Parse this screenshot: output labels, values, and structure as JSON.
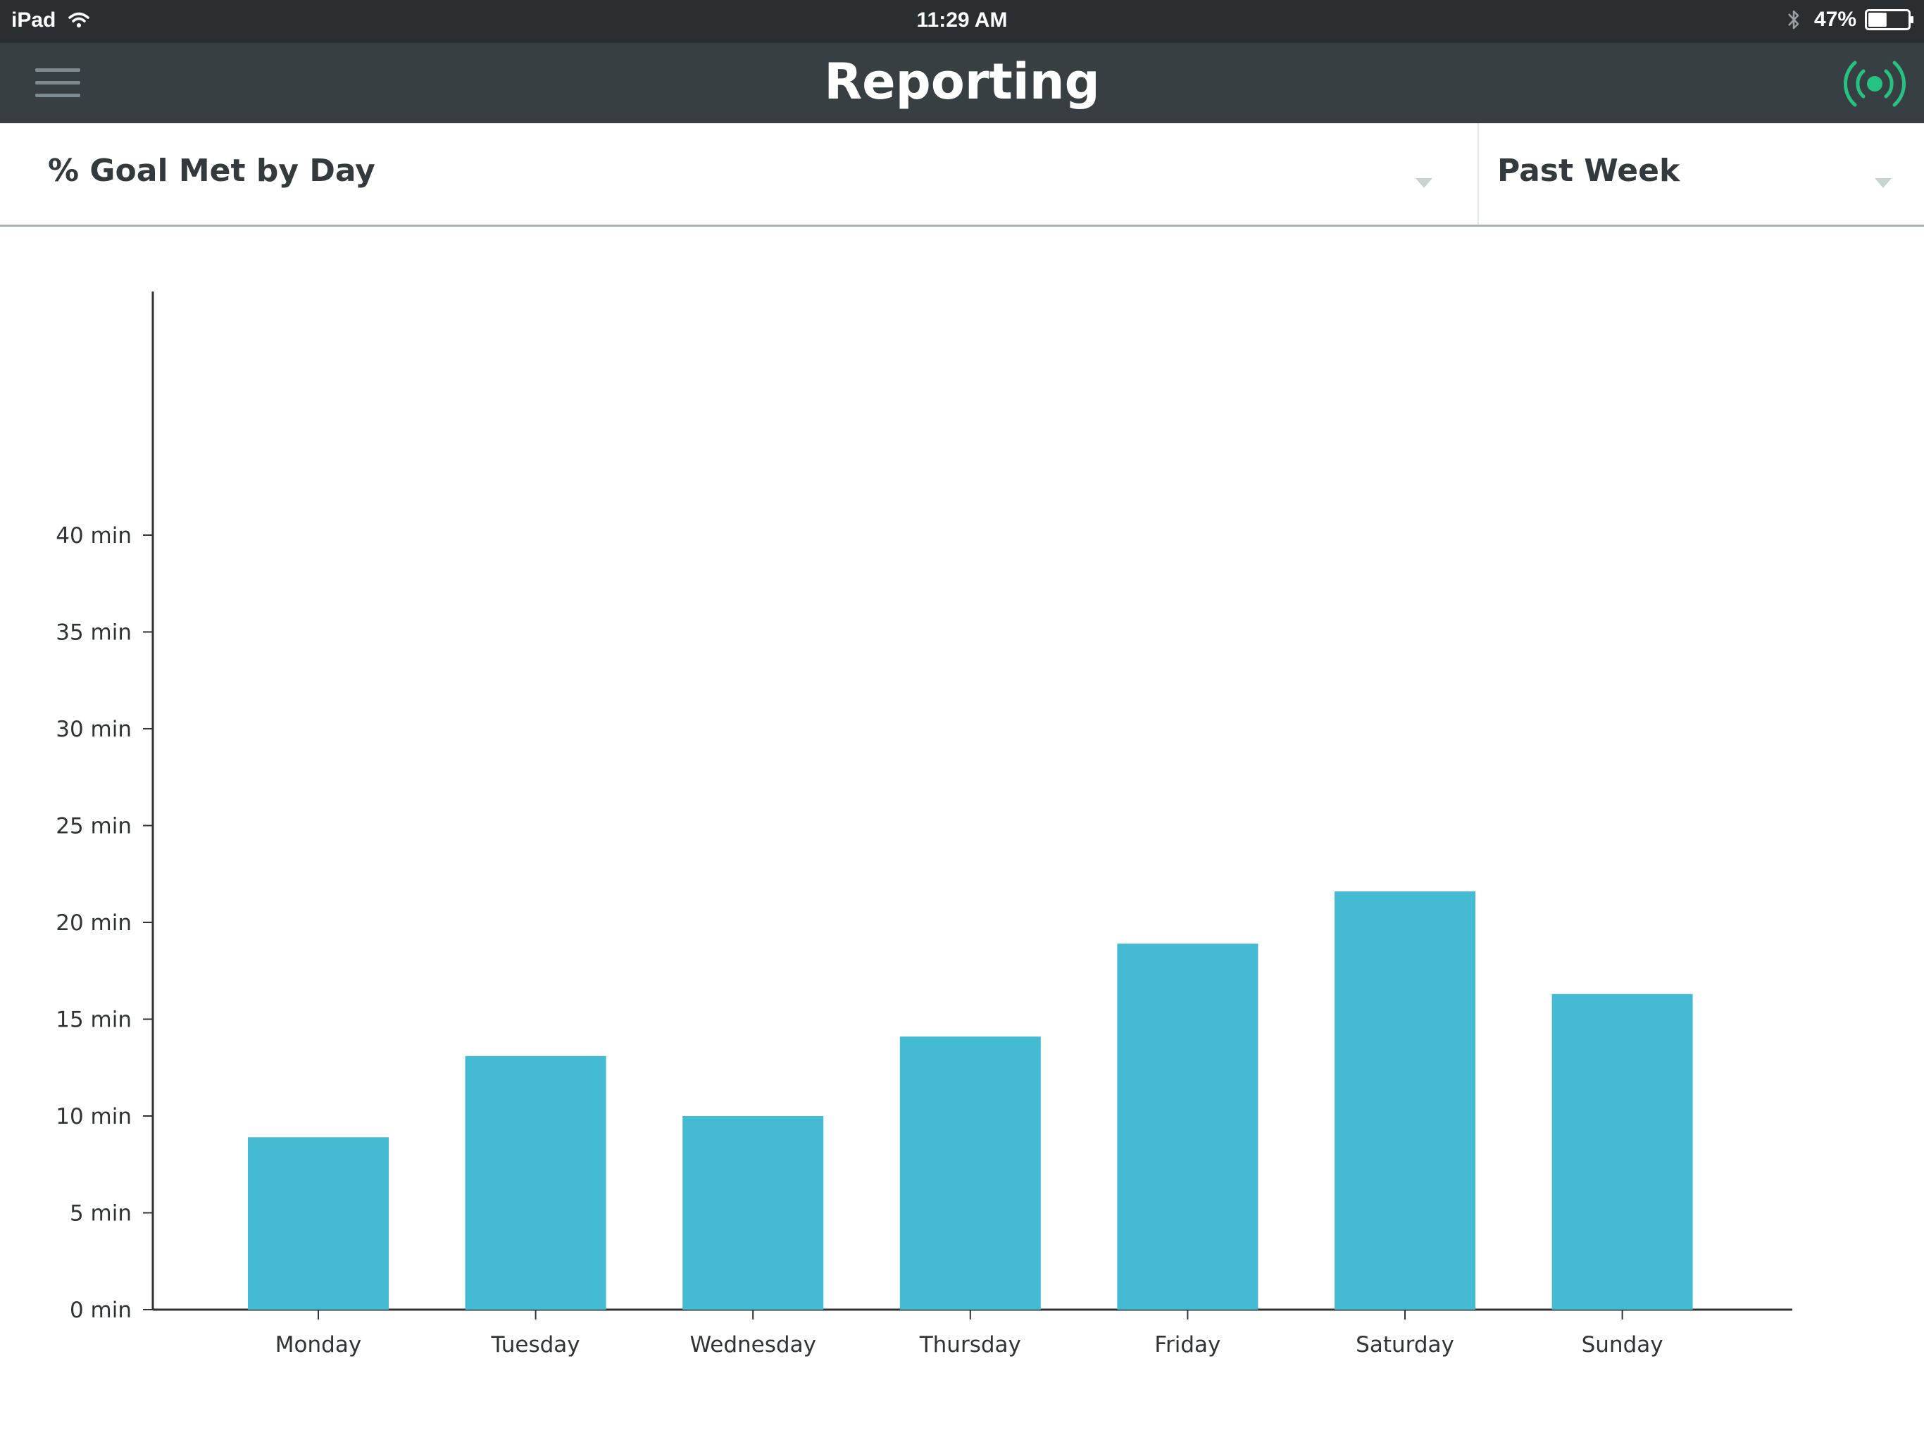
{
  "status_bar": {
    "device": "iPad",
    "time": "11:29 AM",
    "battery_percent": "47%",
    "battery_level": 0.47
  },
  "header": {
    "title": "Reporting",
    "menu_icon": "hamburger-menu-icon",
    "status_icon": "broadcast-signal-icon",
    "status_color": "#26c281"
  },
  "filters": {
    "metric": "% Goal Met by Day",
    "period": "Past Week"
  },
  "colors": {
    "bar": "#45bbd3",
    "nav": "#383f43",
    "status_bar": "#2a2e30"
  },
  "chart_data": {
    "type": "bar",
    "title": "",
    "xlabel": "",
    "ylabel": "",
    "categories": [
      "Monday",
      "Tuesday",
      "Wednesday",
      "Thursday",
      "Friday",
      "Saturday",
      "Sunday"
    ],
    "values": [
      8.9,
      13.1,
      10.0,
      14.1,
      18.9,
      21.6,
      16.3
    ],
    "unit_suffix": " min",
    "ylim": [
      0,
      40
    ],
    "yticks": [
      0,
      5,
      10,
      15,
      20,
      25,
      30,
      35,
      40
    ],
    "ytick_labels": [
      "0 min",
      "5 min",
      "10 min",
      "15 min",
      "20 min",
      "25 min",
      "30 min",
      "35 min",
      "40 min"
    ],
    "grid": false,
    "legend": "none"
  }
}
